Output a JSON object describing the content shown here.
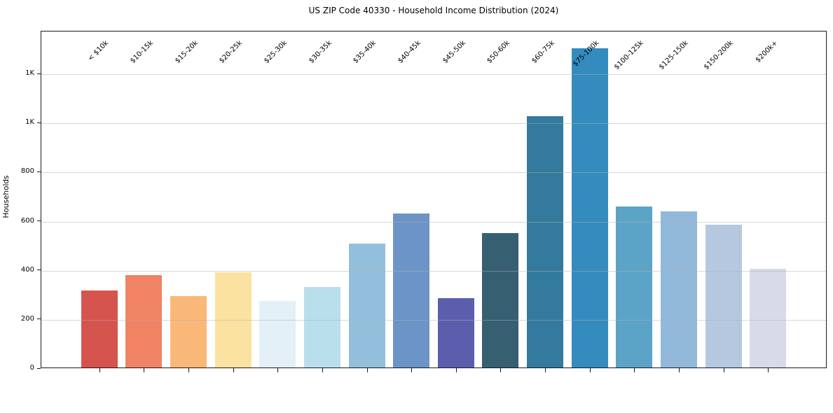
{
  "chart_data": {
    "type": "bar",
    "title": "US ZIP Code 40330 - Household Income Distribution (2024)",
    "xlabel": "",
    "ylabel": "Households",
    "categories": [
      "< $10k",
      "$10-15k",
      "$15-20k",
      "$20-25k",
      "$25-30k",
      "$30-35k",
      "$35-40k",
      "$40-45k",
      "$45-50k",
      "$50-60k",
      "$60-75k",
      "$75-100k",
      "$100-125k",
      "$125-150k",
      "$150-200k",
      "$200k+"
    ],
    "values": [
      314,
      379,
      291,
      389,
      271,
      329,
      508,
      631,
      283,
      549,
      1029,
      1305,
      658,
      638,
      584,
      404
    ],
    "bar_colors": [
      "#d5544e",
      "#f18365",
      "#fab878",
      "#fce2a0",
      "#e3f0f7",
      "#badfec",
      "#93bfdd",
      "#6d94c6",
      "#5b5ead",
      "#365f72",
      "#337a9e",
      "#348bbe",
      "#5ba4c7",
      "#92b8da",
      "#b6c8e0",
      "#d7dbe8"
    ],
    "y_ticks": {
      "values": [
        0,
        200,
        400,
        600,
        800,
        1000,
        1200
      ],
      "labels": [
        "0",
        "200",
        "400",
        "600",
        "800",
        "1K",
        "1K"
      ]
    },
    "ylim": [
      0,
      1374
    ],
    "x_tick_rotation": 45,
    "grid": "horizontal gridlines at y ticks, light gray, drawn over bars",
    "legend": "none",
    "colors": {
      "background": "#ffffff",
      "spine": "#1a1a1a",
      "gridline": "#b0b0b0",
      "text": "#000000"
    }
  }
}
